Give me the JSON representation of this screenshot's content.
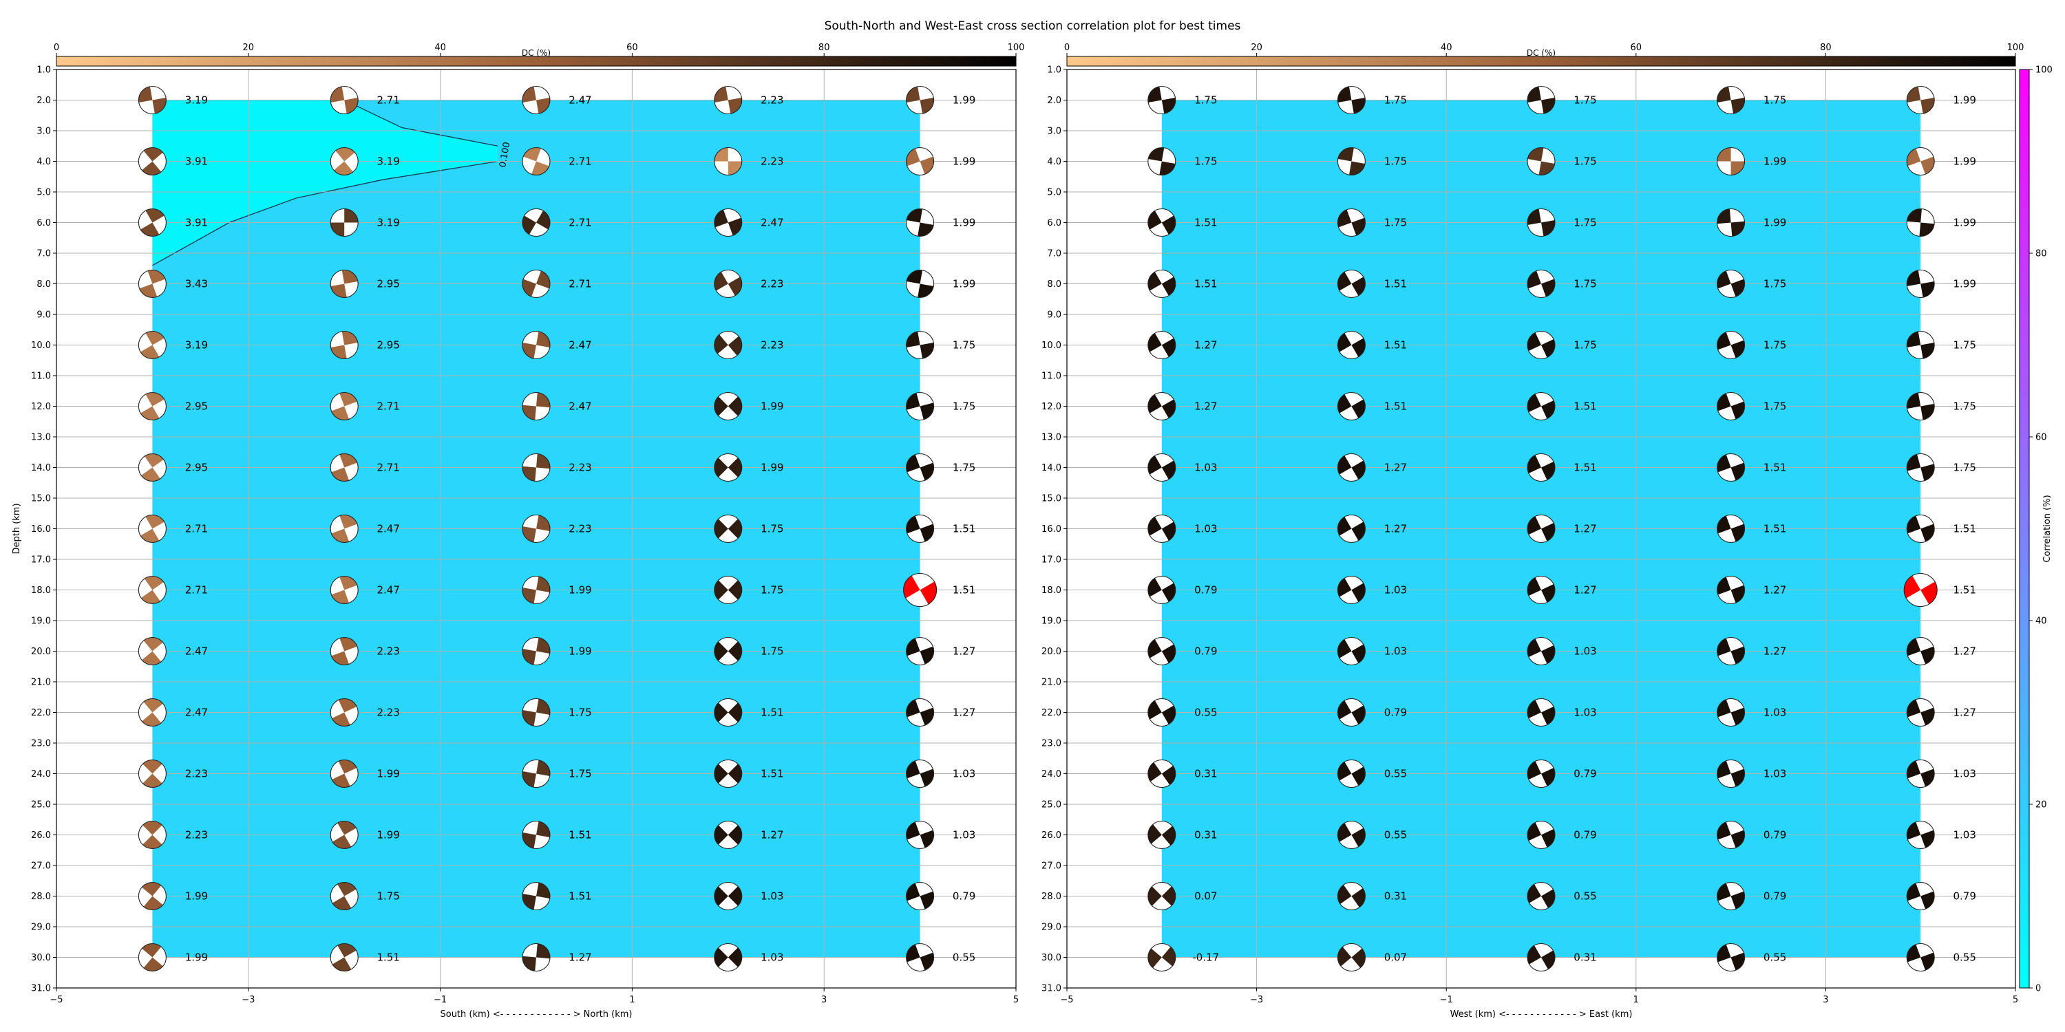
{
  "chart_data": {
    "type": "heatmap",
    "title": "South-North and West-East cross section correlation plot for best times",
    "depth_ticks": [
      "1.0",
      "2.0",
      "3.0",
      "4.0",
      "5.0",
      "6.0",
      "7.0",
      "8.0",
      "9.0",
      "10.0",
      "11.0",
      "12.0",
      "13.0",
      "14.0",
      "15.0",
      "16.0",
      "17.0",
      "18.0",
      "19.0",
      "20.0",
      "21.0",
      "22.0",
      "23.0",
      "24.0",
      "25.0",
      "26.0",
      "27.0",
      "28.0",
      "29.0",
      "30.0",
      "31.0"
    ],
    "x_ticks": [
      "−5",
      "−3",
      "−1",
      "1",
      "3",
      "5"
    ],
    "dc_ticks": [
      "0",
      "20",
      "40",
      "60",
      "80",
      "100"
    ],
    "depth_range": [
      1,
      31
    ],
    "x_range": [
      -5,
      5
    ],
    "depths": [
      2,
      4,
      6,
      8,
      10,
      12,
      14,
      16,
      18,
      20,
      22,
      24,
      26,
      28,
      30
    ],
    "positions": [
      -4,
      -2,
      0,
      2,
      4
    ],
    "best_solution": {
      "depth": 18,
      "position": 4
    },
    "colormap": {
      "correlation": {
        "min": "#00ffff",
        "max": "#ff00ff"
      },
      "dc": {
        "min": "#ffc98c",
        "mid": "#9c6038",
        "max": "#000000"
      }
    },
    "panels": [
      {
        "ylabel": "Depth (km)",
        "xlabel": "South (km) <- - - - - - - - - - - - > North (km)",
        "dc_label": "DC (%)",
        "background_correlation": 18,
        "background_color": "#2ad6fb",
        "contour": {
          "label": "0.100",
          "fill_color": "#04f6fc"
        },
        "values": [
          [
            "3.19",
            "2.71",
            "2.47",
            "2.23",
            "1.99"
          ],
          [
            "3.91",
            "3.19",
            "2.71",
            "2.23",
            "1.99"
          ],
          [
            "3.91",
            "3.19",
            "2.71",
            "2.47",
            "1.99"
          ],
          [
            "3.43",
            "2.95",
            "2.71",
            "2.23",
            "1.99"
          ],
          [
            "3.19",
            "2.95",
            "2.47",
            "2.23",
            "1.75"
          ],
          [
            "2.95",
            "2.71",
            "2.47",
            "1.99",
            "1.75"
          ],
          [
            "2.95",
            "2.71",
            "2.23",
            "1.99",
            "1.75"
          ],
          [
            "2.71",
            "2.47",
            "2.23",
            "1.75",
            "1.51"
          ],
          [
            "2.71",
            "2.47",
            "1.99",
            "1.75",
            "1.51"
          ],
          [
            "2.47",
            "2.23",
            "1.99",
            "1.75",
            "1.27"
          ],
          [
            "2.47",
            "2.23",
            "1.75",
            "1.51",
            "1.27"
          ],
          [
            "2.23",
            "1.99",
            "1.75",
            "1.51",
            "1.03"
          ],
          [
            "2.23",
            "1.99",
            "1.51",
            "1.27",
            "1.03"
          ],
          [
            "1.99",
            "1.75",
            "1.51",
            "1.03",
            "0.79"
          ],
          [
            "1.99",
            "1.51",
            "1.27",
            "1.03",
            "0.55"
          ]
        ],
        "dc": [
          [
            60,
            50,
            55,
            60,
            65
          ],
          [
            60,
            35,
            35,
            30,
            45
          ],
          [
            62,
            70,
            80,
            85,
            90
          ],
          [
            45,
            50,
            62,
            75,
            92
          ],
          [
            40,
            45,
            55,
            80,
            90
          ],
          [
            38,
            40,
            58,
            85,
            92
          ],
          [
            38,
            45,
            65,
            85,
            92
          ],
          [
            38,
            40,
            58,
            85,
            92
          ],
          [
            38,
            40,
            62,
            85,
            0
          ],
          [
            40,
            48,
            68,
            88,
            92
          ],
          [
            40,
            48,
            70,
            88,
            92
          ],
          [
            45,
            52,
            72,
            88,
            92
          ],
          [
            48,
            58,
            75,
            90,
            92
          ],
          [
            52,
            62,
            80,
            90,
            92
          ],
          [
            55,
            65,
            80,
            90,
            92
          ]
        ],
        "angle": [
          [
            -10,
            -10,
            -10,
            -10,
            -10
          ],
          [
            50,
            50,
            20,
            0,
            -20
          ],
          [
            60,
            90,
            120,
            160,
            190
          ],
          [
            70,
            80,
            110,
            150,
            190
          ],
          [
            60,
            80,
            100,
            140,
            170
          ],
          [
            60,
            70,
            95,
            135,
            165
          ],
          [
            55,
            70,
            95,
            135,
            160
          ],
          [
            60,
            70,
            100,
            135,
            160
          ],
          [
            55,
            70,
            100,
            135,
            150
          ],
          [
            50,
            70,
            100,
            135,
            160
          ],
          [
            50,
            65,
            100,
            135,
            160
          ],
          [
            45,
            65,
            100,
            135,
            160
          ],
          [
            45,
            60,
            100,
            135,
            160
          ],
          [
            40,
            60,
            100,
            135,
            160
          ],
          [
            40,
            60,
            95,
            135,
            160
          ]
        ]
      },
      {
        "ylabel": "",
        "xlabel": "West (km) <- - - - - - - - - - - - > East (km)",
        "dc_label": "DC (%)",
        "background_correlation": 18,
        "background_color": "#2ad6fb",
        "values": [
          [
            "1.75",
            "1.75",
            "1.75",
            "1.75",
            "1.99"
          ],
          [
            "1.75",
            "1.75",
            "1.75",
            "1.99",
            "1.99"
          ],
          [
            "1.51",
            "1.75",
            "1.75",
            "1.99",
            "1.99"
          ],
          [
            "1.51",
            "1.51",
            "1.75",
            "1.75",
            "1.99"
          ],
          [
            "1.27",
            "1.51",
            "1.75",
            "1.75",
            "1.75"
          ],
          [
            "1.27",
            "1.51",
            "1.51",
            "1.75",
            "1.75"
          ],
          [
            "1.03",
            "1.27",
            "1.51",
            "1.51",
            "1.75"
          ],
          [
            "1.03",
            "1.27",
            "1.27",
            "1.51",
            "1.51"
          ],
          [
            "0.79",
            "1.03",
            "1.27",
            "1.27",
            "1.51"
          ],
          [
            "0.79",
            "1.03",
            "1.03",
            "1.27",
            "1.27"
          ],
          [
            "0.55",
            "0.79",
            "1.03",
            "1.03",
            "1.27"
          ],
          [
            "0.31",
            "0.55",
            "0.79",
            "1.03",
            "1.03"
          ],
          [
            "0.31",
            "0.55",
            "0.79",
            "0.79",
            "1.03"
          ],
          [
            "0.07",
            "0.31",
            "0.55",
            "0.79",
            "0.79"
          ],
          [
            "-0.17",
            "0.07",
            "0.31",
            "0.55",
            "0.55"
          ]
        ],
        "dc": [
          [
            90,
            90,
            88,
            80,
            65
          ],
          [
            88,
            80,
            70,
            45,
            45
          ],
          [
            90,
            88,
            88,
            88,
            90
          ],
          [
            90,
            90,
            90,
            90,
            92
          ],
          [
            92,
            92,
            92,
            92,
            92
          ],
          [
            92,
            92,
            92,
            92,
            92
          ],
          [
            92,
            92,
            92,
            92,
            92
          ],
          [
            92,
            92,
            92,
            92,
            92
          ],
          [
            92,
            92,
            92,
            92,
            0
          ],
          [
            92,
            92,
            92,
            92,
            92
          ],
          [
            92,
            92,
            92,
            92,
            92
          ],
          [
            90,
            92,
            92,
            92,
            92
          ],
          [
            88,
            90,
            92,
            92,
            92
          ],
          [
            85,
            88,
            90,
            92,
            92
          ],
          [
            80,
            85,
            90,
            92,
            92
          ]
        ],
        "angle": [
          [
            -10,
            -10,
            -10,
            -10,
            -10
          ],
          [
            10,
            10,
            10,
            0,
            -20
          ],
          [
            150,
            160,
            170,
            175,
            185
          ],
          [
            150,
            150,
            160,
            160,
            170
          ],
          [
            150,
            150,
            155,
            160,
            170
          ],
          [
            150,
            150,
            155,
            160,
            170
          ],
          [
            150,
            150,
            155,
            160,
            165
          ],
          [
            150,
            150,
            155,
            160,
            160
          ],
          [
            150,
            150,
            155,
            160,
            150
          ],
          [
            150,
            150,
            155,
            160,
            160
          ],
          [
            150,
            150,
            155,
            160,
            160
          ],
          [
            145,
            150,
            155,
            160,
            160
          ],
          [
            140,
            150,
            155,
            160,
            160
          ],
          [
            135,
            145,
            150,
            160,
            160
          ],
          [
            130,
            140,
            150,
            160,
            160
          ]
        ]
      }
    ],
    "colorbar": {
      "label": "Correlation (%)",
      "ticks": [
        "0",
        "20",
        "40",
        "60",
        "80",
        "100"
      ]
    }
  }
}
